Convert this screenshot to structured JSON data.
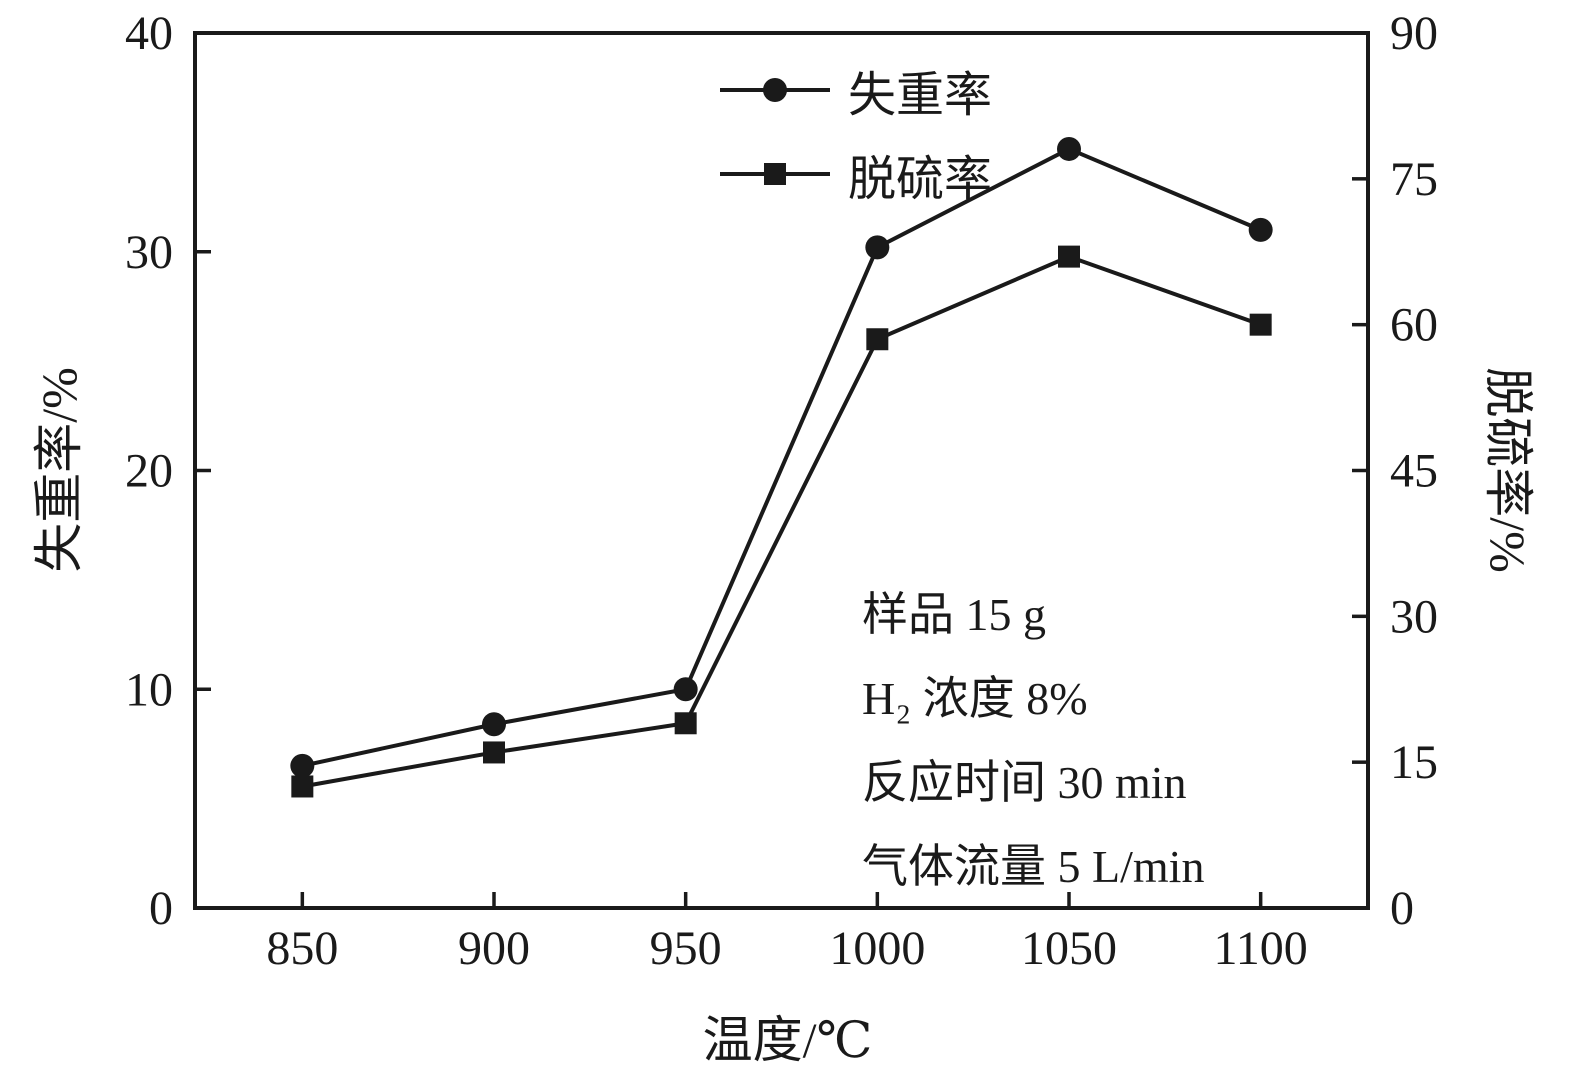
{
  "chart_data": {
    "type": "line",
    "x": [
      850,
      900,
      950,
      1000,
      1050,
      1100
    ],
    "series": [
      {
        "name": "失重率",
        "axis": "left",
        "marker": "circle",
        "values": [
          6.5,
          8.4,
          10.0,
          30.2,
          34.7,
          31.0
        ]
      },
      {
        "name": "脱硫率",
        "axis": "right",
        "marker": "square",
        "values": [
          12.5,
          16.0,
          19.0,
          58.5,
          67.0,
          60.0
        ]
      }
    ],
    "xlabel": "温度/℃",
    "ylabel_left": "失重率/%",
    "ylabel_right": "脱硫率/%",
    "xlim": [
      822,
      1128
    ],
    "ylim_left": [
      0,
      40
    ],
    "ylim_right": [
      0,
      90
    ],
    "xticks": [
      850,
      900,
      950,
      1000,
      1050,
      1100
    ],
    "yticks_left": [
      0,
      10,
      20,
      30,
      40
    ],
    "yticks_right": [
      0,
      15,
      30,
      45,
      60,
      75,
      90
    ],
    "grid": false,
    "legend_position": "top-center-inside",
    "line_color": "#1a1a1a",
    "annotations": [
      "样品 15 g",
      "H₂ 浓度 8%",
      "反应时间 30 min",
      "气体流量 5 L/min"
    ]
  }
}
